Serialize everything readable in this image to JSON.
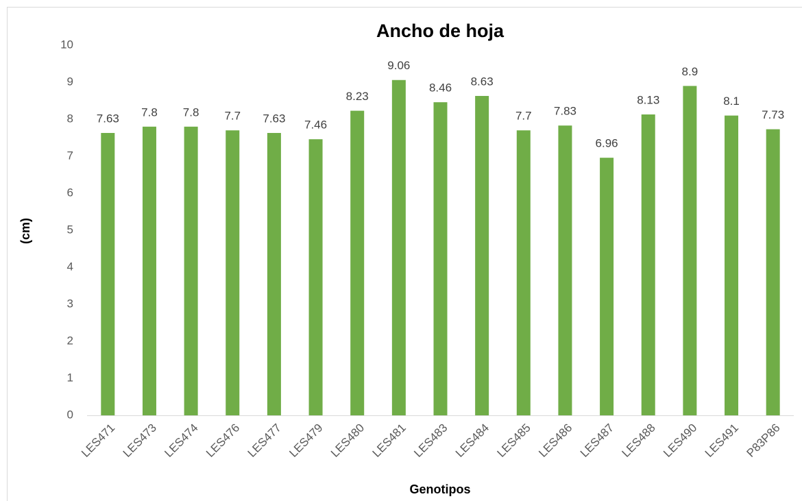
{
  "chart_data": {
    "type": "bar",
    "title": "Ancho de hoja",
    "x_label": "Genotipos",
    "y_label": "(cm)",
    "categories": [
      "LES471",
      "LES473",
      "LES474",
      "LES476",
      "LES477",
      "LES479",
      "LES480",
      "LES481",
      "LES483",
      "LES484",
      "LES485",
      "LES486",
      "LES487",
      "LES488",
      "LES490",
      "LES491",
      "P83P86"
    ],
    "values": [
      7.63,
      7.8,
      7.8,
      7.7,
      7.63,
      7.46,
      8.23,
      9.06,
      8.46,
      8.63,
      7.7,
      7.83,
      6.96,
      8.13,
      8.9,
      8.1,
      7.73
    ],
    "color": "#70ad47",
    "ylim": [
      0,
      10
    ],
    "yticks": [
      0,
      1,
      2,
      3,
      4,
      5,
      6,
      7,
      8,
      9,
      10
    ],
    "grid": false
  }
}
